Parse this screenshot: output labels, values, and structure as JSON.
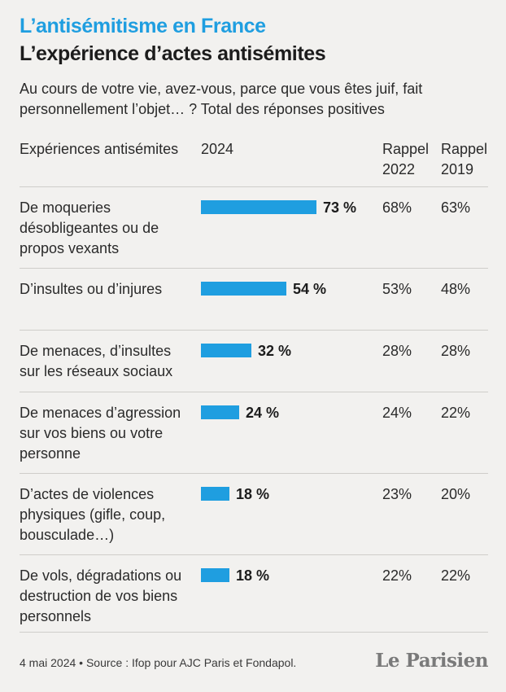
{
  "kicker": "L’antisémitisme en France",
  "title": "L’expérience d’actes antisémites",
  "subtitle": "Au cours de votre vie, avez-vous, parce que vous êtes juif, fait personnellement l’objet… ? Total des réponses positives",
  "headers": {
    "category": "Expériences antisémites",
    "year2024": "2024",
    "rappel2022": "Rappel 2022",
    "rappel2019": "Rappel 2019"
  },
  "chart_data": {
    "type": "bar",
    "orientation": "horizontal",
    "xlim": [
      0,
      100
    ],
    "categories": [
      "De moqueries désobligeantes ou de propos vexants",
      "D’insultes ou d’injures",
      "De menaces, d’insultes sur les réseaux sociaux",
      "De menaces d’agression sur vos biens ou votre personne",
      "D’actes de violences physiques (gifle, coup, bousculade…)",
      "De vols, dégradations ou destruction de vos biens personnels"
    ],
    "series": [
      {
        "name": "2024",
        "values": [
          73,
          54,
          32,
          24,
          18,
          18
        ]
      },
      {
        "name": "Rappel 2022",
        "values": [
          68,
          53,
          28,
          24,
          23,
          22
        ]
      },
      {
        "name": "Rappel 2019",
        "values": [
          63,
          48,
          28,
          22,
          20,
          22
        ]
      }
    ],
    "rows": [
      {
        "label": "De moqueries désobligeantes ou de propos vexants",
        "v2024": "73 %",
        "v2022": "68%",
        "v2019": "63%"
      },
      {
        "label": "D’insultes ou d’injures",
        "v2024": "54 %",
        "v2022": "53%",
        "v2019": "48%"
      },
      {
        "label": "De menaces, d’insultes sur les réseaux sociaux",
        "v2024": "32 %",
        "v2022": "28%",
        "v2019": "28%"
      },
      {
        "label": "De menaces d’agression sur vos biens ou votre personne",
        "v2024": "24 %",
        "v2022": "24%",
        "v2019": "22%"
      },
      {
        "label": "D’actes de violences physiques (gifle, coup, bousculade…)",
        "v2024": "18 %",
        "v2022": "23%",
        "v2019": "20%"
      },
      {
        "label": "De vols, dégradations ou destruction de vos biens personnels",
        "v2024": "18 %",
        "v2022": "22%",
        "v2019": "22%"
      }
    ]
  },
  "colors": {
    "accent": "#1f9ee0",
    "background": "#f2f1ef"
  },
  "footer": {
    "source": "4 mai 2024 • Source : Ifop pour AJC Paris et Fondapol."
  },
  "logo": "Le Parisien"
}
